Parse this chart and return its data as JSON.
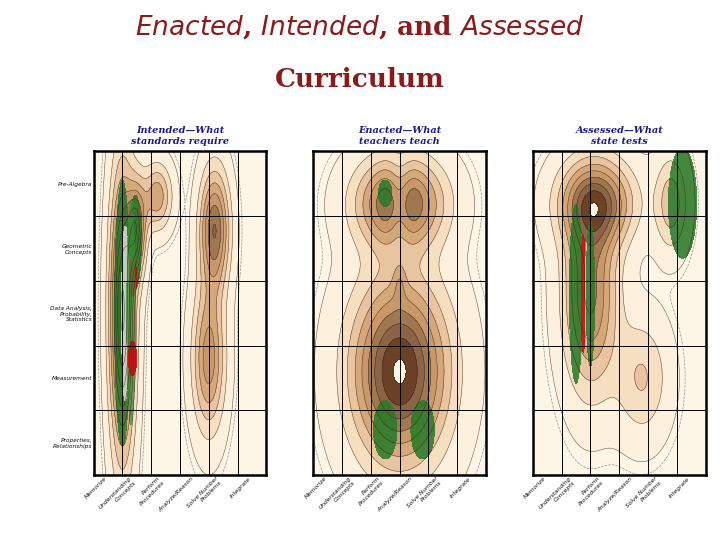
{
  "title_line1": "Enacted, Intended, and Assessed",
  "title_line2": "Curriculum",
  "title_color": "#8B1A1A",
  "bg_color": "#ffffff",
  "panel_labels": [
    "Intended—What\nstandards require",
    "Enacted—What\nteachers teach",
    "Assessed—What\nstate tests"
  ],
  "panel_label_color": "#1a1a8c",
  "y_labels": [
    "Properties,\nRelationships",
    "Measurement",
    "Data Analysis,\nProbability,\nStatistics",
    "Geometric\nConcepts",
    "Pre-Algebra"
  ],
  "x_labels": [
    "Memorize",
    "Understanding\nConcepts",
    "Perform\nProcedures",
    "Analyze/Reason",
    "Solve Number\nProblems",
    "Integrate"
  ],
  "contour_colors": [
    "#fdf0dc",
    "#f5dfc0",
    "#e8c4a0",
    "#d4a878",
    "#c8986a",
    "#a07850",
    "#8B6347",
    "#6B4226"
  ],
  "green_color": "#2a7a2a",
  "red_color": "#cc1111",
  "white_gray": "#d8d8d0",
  "grid_color": "#000000",
  "panel_bg": "#fdf5e6",
  "dashed_color": "#555555"
}
